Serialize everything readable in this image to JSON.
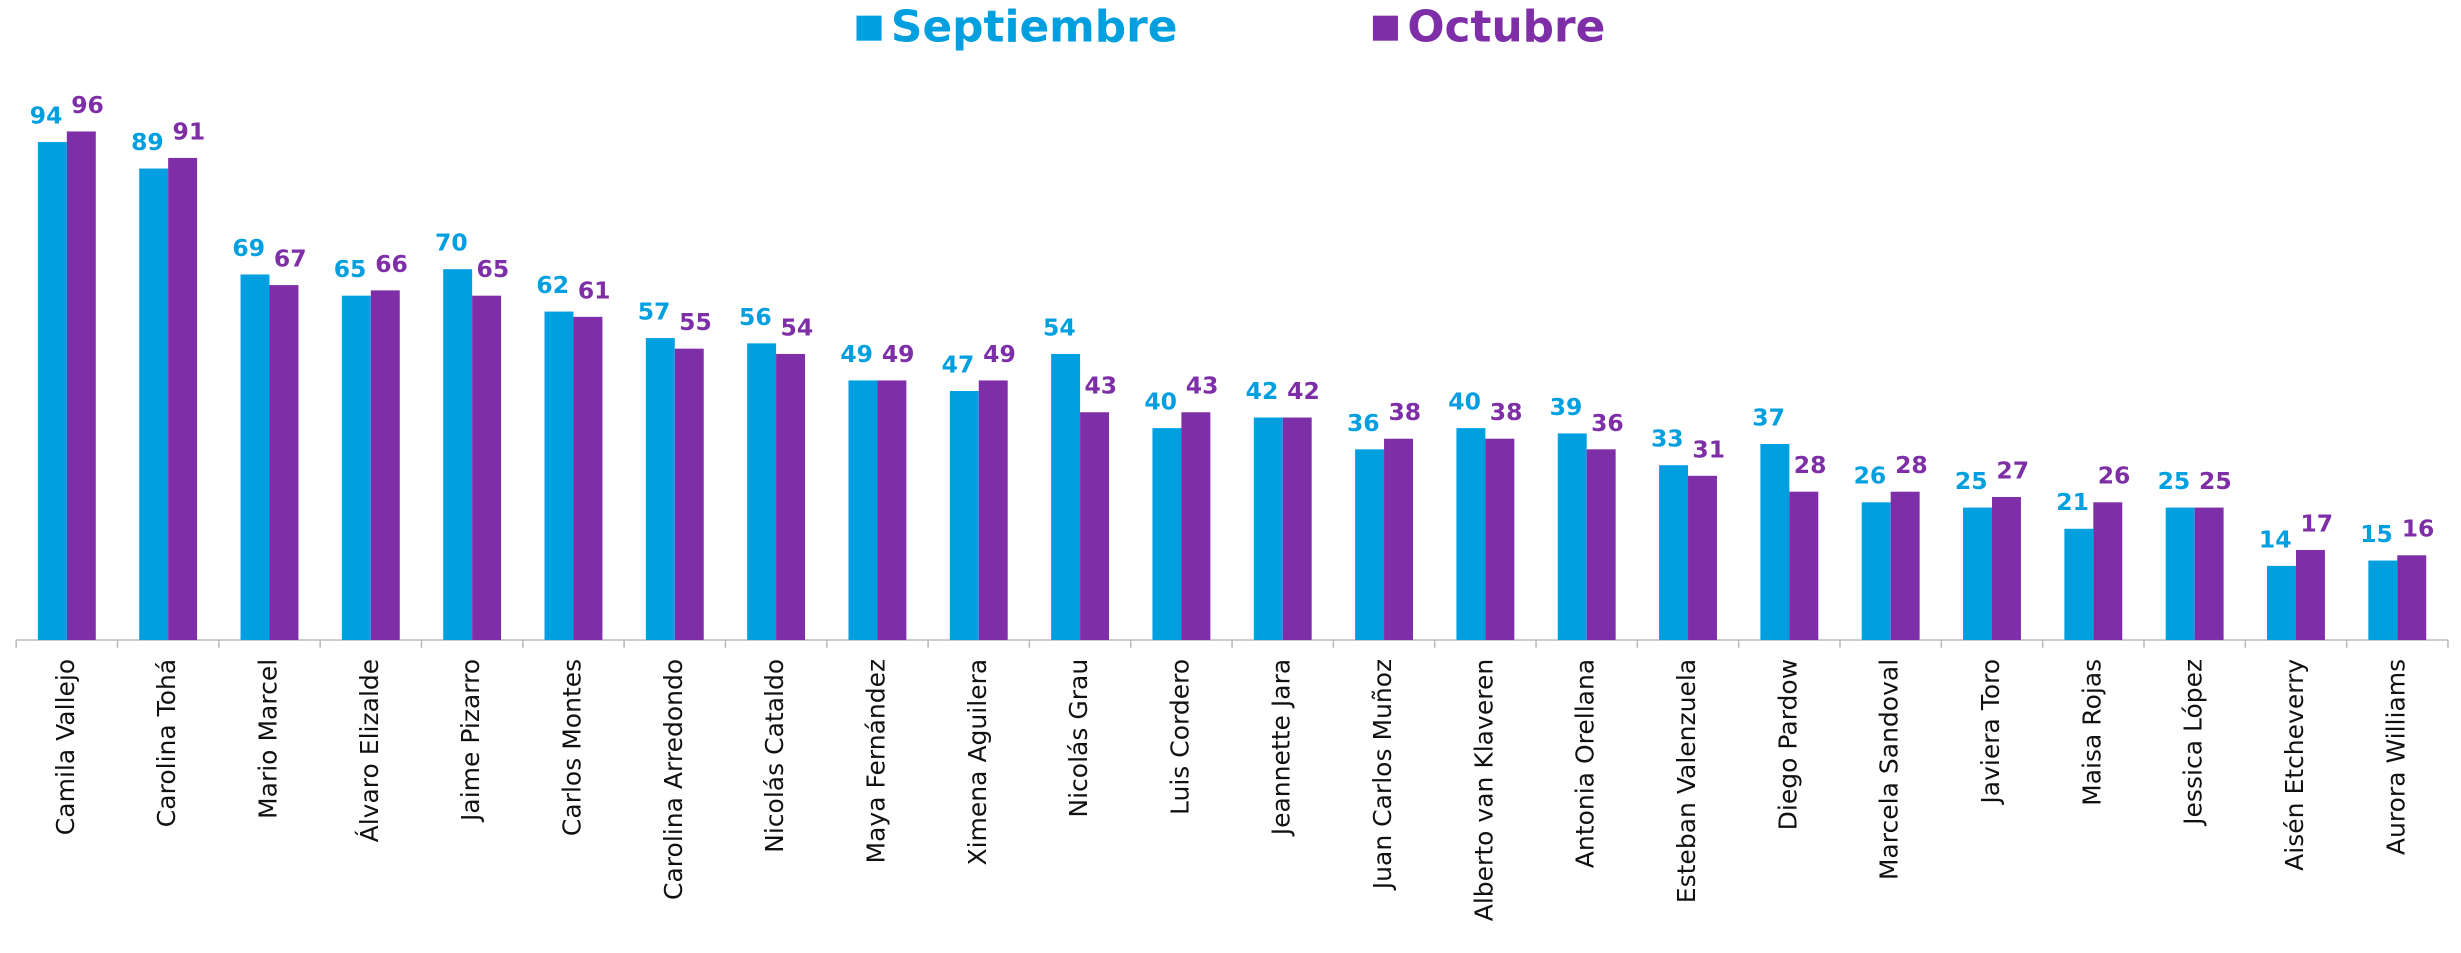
{
  "chart_data": {
    "type": "bar",
    "categories": [
      "Camila Vallejo",
      "Carolina Tohá",
      "Mario Marcel",
      "Álvaro Elizalde",
      "Jaime Pizarro",
      "Carlos Montes",
      "Carolina Arredondo",
      "Nicolás Cataldo",
      "Maya Fernández",
      "Ximena Aguilera",
      "Nicolás Grau",
      "Luis Cordero",
      "Jeannette Jara",
      "Juan Carlos Muñoz",
      "Alberto van Klaveren",
      "Antonia Orellana",
      "Esteban Valenzuela",
      "Diego Pardow",
      "Marcela Sandoval",
      "Javiera Toro",
      "Maisa Rojas",
      "Jessica López",
      "Aisén Etcheverry",
      "Aurora Williams"
    ],
    "series": [
      {
        "name": "Septiembre",
        "color": "#009fe0",
        "values": [
          94,
          89,
          69,
          65,
          70,
          62,
          57,
          56,
          49,
          47,
          54,
          40,
          42,
          36,
          40,
          39,
          33,
          37,
          26,
          25,
          21,
          25,
          14,
          15
        ]
      },
      {
        "name": "Octubre",
        "color": "#7e2fa8",
        "values": [
          96,
          91,
          67,
          66,
          65,
          61,
          55,
          54,
          49,
          49,
          43,
          43,
          42,
          38,
          38,
          36,
          31,
          28,
          28,
          27,
          26,
          25,
          17,
          16
        ]
      }
    ],
    "legend": "top"
  }
}
